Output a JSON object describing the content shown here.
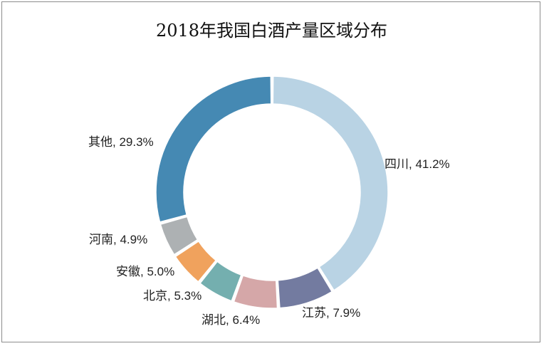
{
  "chart_data": {
    "type": "pie",
    "style": "donut",
    "title": "2018年我国白酒产量区域分布",
    "slices": [
      {
        "label": "四川",
        "value": 41.2,
        "display": "四川, 41.2%",
        "color": "#b9d3e4"
      },
      {
        "label": "江苏",
        "value": 7.9,
        "display": "江苏, 7.9%",
        "color": "#737ba0"
      },
      {
        "label": "湖北",
        "value": 6.4,
        "display": "湖北, 6.4%",
        "color": "#d5a7a8"
      },
      {
        "label": "北京",
        "value": 5.3,
        "display": "北京, 5.3%",
        "color": "#74afaf"
      },
      {
        "label": "安徽",
        "value": 5.0,
        "display": "安徽, 5.0%",
        "color": "#f0a25d"
      },
      {
        "label": "河南",
        "value": 4.9,
        "display": "河南, 4.9%",
        "color": "#adb1b3"
      },
      {
        "label": "其他",
        "value": 29.3,
        "display": "其他, 29.3%",
        "color": "#4589b3"
      }
    ],
    "legend": "none"
  }
}
